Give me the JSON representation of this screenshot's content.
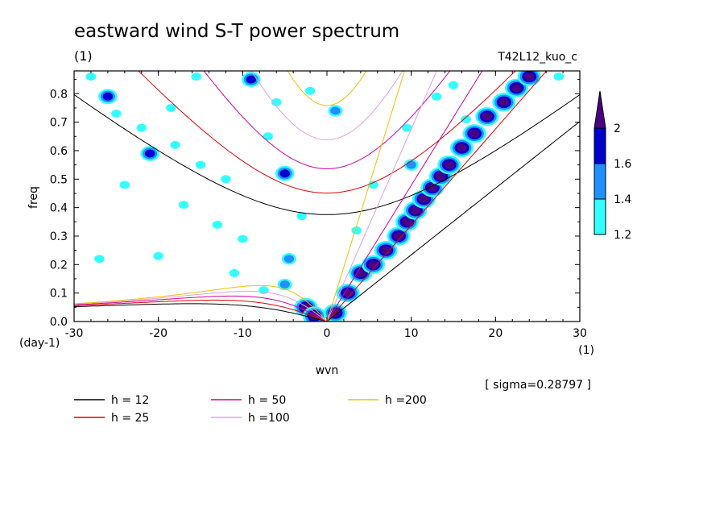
{
  "chart_data": {
    "type": "contour",
    "title": "eastward wind S-T power spectrum",
    "subtitle_left": "(1)",
    "subtitle_right": "T42L12_kuo_c",
    "xlabel": "wvn",
    "ylabel": "freq",
    "x_unit": "(1)",
    "y_unit": "(day-1)",
    "xlim": [
      -30,
      30
    ],
    "ylim": [
      0,
      0.88
    ],
    "xticks": [
      -30,
      -20,
      -10,
      0,
      10,
      20,
      30
    ],
    "yticks": [
      0.0,
      0.1,
      0.2,
      0.3,
      0.4,
      0.5,
      0.6,
      0.7,
      0.8
    ],
    "xtick_labels": [
      "-30",
      "-20",
      "-10",
      "0",
      "10",
      "20",
      "30"
    ],
    "ytick_labels": [
      "0.0",
      "0.1",
      "0.2",
      "0.3",
      "0.4",
      "0.5",
      "0.6",
      "0.7",
      "0.8"
    ],
    "note": "[ sigma=0.28797 ]",
    "colorbar": {
      "levels": [
        1.2,
        1.4,
        1.6,
        2
      ],
      "labels": [
        "1.2",
        "1.4",
        "1.6",
        "2"
      ],
      "colors": [
        "#33ffff",
        "#1e90ff",
        "#0000cd",
        "#4b0082"
      ]
    },
    "series": [
      {
        "name": "h = 12",
        "h": 12,
        "color": "#000000"
      },
      {
        "name": "h = 25",
        "h": 25,
        "color": "#e00000"
      },
      {
        "name": "h = 50",
        "h": 50,
        "color": "#d000a0"
      },
      {
        "name": "h =100",
        "h": 100,
        "color": "#e0a0e0"
      },
      {
        "name": "h =200",
        "h": 200,
        "color": "#f0c000"
      }
    ],
    "blobs": [
      {
        "x": 1.0,
        "y": 0.03,
        "level": 2
      },
      {
        "x": 2.5,
        "y": 0.1,
        "level": 2
      },
      {
        "x": 4.0,
        "y": 0.17,
        "level": 2
      },
      {
        "x": 5.5,
        "y": 0.2,
        "level": 2
      },
      {
        "x": 7.0,
        "y": 0.25,
        "level": 2
      },
      {
        "x": 8.5,
        "y": 0.3,
        "level": 2
      },
      {
        "x": 9.5,
        "y": 0.35,
        "level": 2
      },
      {
        "x": 10.5,
        "y": 0.39,
        "level": 2
      },
      {
        "x": 11.5,
        "y": 0.43,
        "level": 2
      },
      {
        "x": 12.5,
        "y": 0.47,
        "level": 2
      },
      {
        "x": 13.5,
        "y": 0.51,
        "level": 2
      },
      {
        "x": 14.5,
        "y": 0.55,
        "level": 2
      },
      {
        "x": 16.0,
        "y": 0.61,
        "level": 2
      },
      {
        "x": 17.5,
        "y": 0.66,
        "level": 2
      },
      {
        "x": 19.0,
        "y": 0.72,
        "level": 2
      },
      {
        "x": 21.0,
        "y": 0.77,
        "level": 2
      },
      {
        "x": 22.5,
        "y": 0.82,
        "level": 2
      },
      {
        "x": 24.0,
        "y": 0.86,
        "level": 2
      },
      {
        "x": -2.5,
        "y": 0.05,
        "level": 2
      },
      {
        "x": -1.5,
        "y": 0.02,
        "level": 2
      },
      {
        "x": -9.0,
        "y": 0.85,
        "level": 1.6
      },
      {
        "x": -26.0,
        "y": 0.79,
        "level": 1.6
      },
      {
        "x": -5.0,
        "y": 0.52,
        "level": 1.6
      },
      {
        "x": -21.0,
        "y": 0.59,
        "level": 1.6
      },
      {
        "x": -4.5,
        "y": 0.22,
        "level": 1.4
      },
      {
        "x": -5.0,
        "y": 0.13,
        "level": 1.4
      },
      {
        "x": 1.0,
        "y": 0.74,
        "level": 1.4
      },
      {
        "x": 10.0,
        "y": 0.55,
        "level": 1.4
      },
      {
        "x": -28.0,
        "y": 0.86,
        "level": 1.2
      },
      {
        "x": -25.0,
        "y": 0.73,
        "level": 1.2
      },
      {
        "x": -22.0,
        "y": 0.68,
        "level": 1.2
      },
      {
        "x": -18.0,
        "y": 0.62,
        "level": 1.2
      },
      {
        "x": -15.0,
        "y": 0.55,
        "level": 1.2
      },
      {
        "x": -12.0,
        "y": 0.5,
        "level": 1.2
      },
      {
        "x": -13.0,
        "y": 0.34,
        "level": 1.2
      },
      {
        "x": -17.0,
        "y": 0.41,
        "level": 1.2
      },
      {
        "x": -10.0,
        "y": 0.29,
        "level": 1.2
      },
      {
        "x": -7.0,
        "y": 0.65,
        "level": 1.2
      },
      {
        "x": -6.0,
        "y": 0.77,
        "level": 1.2
      },
      {
        "x": -2.0,
        "y": 0.81,
        "level": 1.2
      },
      {
        "x": -24.0,
        "y": 0.48,
        "level": 1.2
      },
      {
        "x": -20.0,
        "y": 0.23,
        "level": 1.2
      },
      {
        "x": -27.0,
        "y": 0.22,
        "level": 1.2
      },
      {
        "x": -11.0,
        "y": 0.17,
        "level": 1.2
      },
      {
        "x": -3.0,
        "y": 0.37,
        "level": 1.2
      },
      {
        "x": 5.5,
        "y": 0.48,
        "level": 1.2
      },
      {
        "x": 9.5,
        "y": 0.68,
        "level": 1.2
      },
      {
        "x": 13.0,
        "y": 0.79,
        "level": 1.2
      },
      {
        "x": 16.5,
        "y": 0.71,
        "level": 1.2
      },
      {
        "x": 27.5,
        "y": 0.86,
        "level": 1.2
      },
      {
        "x": 15.0,
        "y": 0.83,
        "level": 1.2
      },
      {
        "x": -15.5,
        "y": 0.86,
        "level": 1.2
      },
      {
        "x": -18.5,
        "y": 0.75,
        "level": 1.2
      },
      {
        "x": 3.5,
        "y": 0.32,
        "level": 1.2
      },
      {
        "x": -7.5,
        "y": 0.11,
        "level": 1.2
      }
    ]
  }
}
